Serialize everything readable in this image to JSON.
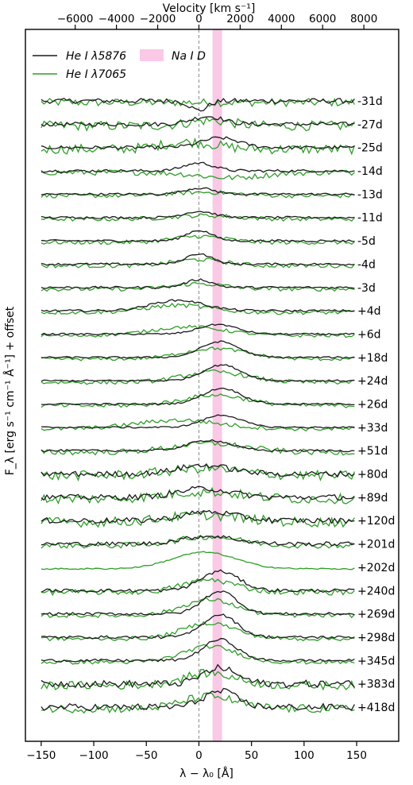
{
  "chart_data": {
    "type": "line",
    "xlabel": "λ − λ₀ [Å]",
    "ylabel": "F_λ [erg s⁻¹ cm⁻¹ Å⁻¹] + offset",
    "top_xlabel": "Velocity [km s⁻¹]",
    "xlim": [
      -165,
      190
    ],
    "x_ticks": [
      -150,
      -100,
      -50,
      0,
      50,
      100,
      150
    ],
    "x_tick_labels": [
      "−150",
      "−100",
      "−50",
      "0",
      "50",
      "100",
      "150"
    ],
    "velocity_ticks": [
      -6000,
      -4000,
      -2000,
      0,
      2000,
      4000,
      6000,
      8000
    ],
    "velocity_tick_labels": [
      "−6000",
      "−4000",
      "−2000",
      "0",
      "2000",
      "4000",
      "6000",
      "8000"
    ],
    "velocity_per_angstrom": 51.0,
    "zero_line_x": 0,
    "na_band": {
      "label": "Na I D",
      "x_range": [
        13,
        22
      ],
      "color": "#f9c9e6"
    },
    "legend": [
      {
        "label": "He I λ5876",
        "color": "#1a1a1a"
      },
      {
        "label": "He I λ7065",
        "color": "#2e9e27"
      }
    ],
    "legend_placement": "top-left",
    "x_samples_range": [
      -150,
      148
    ],
    "series_colors": {
      "he5876": "#1a1a1a",
      "he7065": "#2e9e27"
    },
    "epochs": [
      {
        "label": "-31d",
        "he5876": {
          "peak": 0,
          "amp": -0.55,
          "width": 8,
          "noise": 0.18
        },
        "he7065": {
          "peak": 0,
          "amp": 0,
          "width": 30,
          "noise": 0.28
        }
      },
      {
        "label": "-27d",
        "he5876": {
          "peak": 8,
          "amp": 0.45,
          "width": 15,
          "noise": 0.15
        },
        "he7065": {
          "peak": 10,
          "amp": 0.3,
          "width": 20,
          "noise": 0.35
        }
      },
      {
        "label": "-25d",
        "he5876": {
          "peak": 20,
          "amp": 0.55,
          "width": 18,
          "noise": 0.12
        },
        "he7065": {
          "peak": -10,
          "amp": 0.4,
          "width": 25,
          "noise": 0.35
        }
      },
      {
        "label": "-14d",
        "he5876": {
          "peak": 0,
          "amp": 0.45,
          "width": 14,
          "noise": 0.1
        },
        "he7065": {
          "peak": 30,
          "amp": -0.3,
          "width": 30,
          "noise": 0.2
        }
      },
      {
        "label": "-13d",
        "he5876": {
          "peak": 0,
          "amp": 0.35,
          "width": 14,
          "noise": 0.08
        },
        "he7065": {
          "peak": 5,
          "amp": 0.2,
          "width": 30,
          "noise": 0.15
        }
      },
      {
        "label": "-11d",
        "he5876": {
          "peak": 0,
          "amp": 0.35,
          "width": 14,
          "noise": 0.08
        },
        "he7065": {
          "peak": 5,
          "amp": 0.2,
          "width": 30,
          "noise": 0.15
        }
      },
      {
        "label": "-5d",
        "he5876": {
          "peak": 0,
          "amp": 0.6,
          "width": 12,
          "noise": 0.08
        },
        "he7065": {
          "peak": 0,
          "amp": 0.35,
          "width": 25,
          "noise": 0.15
        }
      },
      {
        "label": "-4d",
        "he5876": {
          "peak": 0,
          "amp": 0.6,
          "width": 12,
          "noise": 0.08
        },
        "he7065": {
          "peak": 0,
          "amp": 0.35,
          "width": 25,
          "noise": 0.15
        }
      },
      {
        "label": "-3d",
        "he5876": {
          "peak": 0,
          "amp": 0.45,
          "width": 12,
          "noise": 0.08
        },
        "he7065": {
          "peak": 0,
          "amp": 0.3,
          "width": 25,
          "noise": 0.15
        }
      },
      {
        "label": "+4d",
        "he5876": {
          "peak": -20,
          "amp": 0.6,
          "width": 25,
          "noise": 0.08
        },
        "he7065": {
          "peak": -20,
          "amp": 0.4,
          "width": 30,
          "noise": 0.15
        }
      },
      {
        "label": "+6d",
        "he5876": {
          "peak": 18,
          "amp": 0.55,
          "width": 18,
          "noise": 0.06
        },
        "he7065": {
          "peak": -10,
          "amp": 0.5,
          "width": 35,
          "noise": 0.12
        }
      },
      {
        "label": "+18d",
        "he5876": {
          "peak": 20,
          "amp": 0.9,
          "width": 18,
          "noise": 0.06
        },
        "he7065": {
          "peak": 15,
          "amp": 0.6,
          "width": 30,
          "noise": 0.12
        }
      },
      {
        "label": "+24d",
        "he5876": {
          "peak": 22,
          "amp": 0.9,
          "width": 18,
          "noise": 0.06
        },
        "he7065": {
          "peak": 15,
          "amp": 0.6,
          "width": 30,
          "noise": 0.15
        }
      },
      {
        "label": "+26d",
        "he5876": {
          "peak": 22,
          "amp": 0.9,
          "width": 18,
          "noise": 0.06
        },
        "he7065": {
          "peak": 15,
          "amp": 0.6,
          "width": 30,
          "noise": 0.15
        }
      },
      {
        "label": "+33d",
        "he5876": {
          "peak": 22,
          "amp": 0.7,
          "width": 18,
          "noise": 0.06
        },
        "he7065": {
          "peak": -20,
          "amp": 0.5,
          "width": 40,
          "noise": 0.15
        }
      },
      {
        "label": "+51d",
        "he5876": {
          "peak": 10,
          "amp": 0.6,
          "width": 20,
          "noise": 0.08
        },
        "he7065": {
          "peak": 10,
          "amp": 0.5,
          "width": 35,
          "noise": 0.2
        }
      },
      {
        "label": "+80d",
        "he5876": {
          "peak": 5,
          "amp": 0.5,
          "width": 25,
          "noise": 0.2
        },
        "he7065": {
          "peak": 5,
          "amp": 0.4,
          "width": 35,
          "noise": 0.35
        }
      },
      {
        "label": "+89d",
        "he5876": {
          "peak": 5,
          "amp": 0.5,
          "width": 25,
          "noise": 0.2
        },
        "he7065": {
          "peak": 5,
          "amp": 0.4,
          "width": 35,
          "noise": 0.35
        }
      },
      {
        "label": "+120d",
        "he5876": {
          "peak": 10,
          "amp": 0.5,
          "width": 25,
          "noise": 0.2
        },
        "he7065": {
          "peak": 5,
          "amp": 0.4,
          "width": 35,
          "noise": 0.35
        }
      },
      {
        "label": "+201d",
        "he5876": {
          "peak": 10,
          "amp": 0.45,
          "width": 25,
          "noise": 0.15
        },
        "he7065": {
          "peak": 10,
          "amp": 0.5,
          "width": 30,
          "noise": 0.2
        }
      },
      {
        "label": "+202d",
        "he5876": null,
        "he7065": {
          "peak": 5,
          "amp": 0.95,
          "width": 30,
          "noise": 0.05
        }
      },
      {
        "label": "+240d",
        "he5876": {
          "peak": 20,
          "amp": 1.1,
          "width": 18,
          "noise": 0.12
        },
        "he7065": {
          "peak": 10,
          "amp": 0.7,
          "width": 25,
          "noise": 0.2
        }
      },
      {
        "label": "+269d",
        "he5876": {
          "peak": 20,
          "amp": 1.3,
          "width": 16,
          "noise": 0.1
        },
        "he7065": {
          "peak": 10,
          "amp": 0.9,
          "width": 25,
          "noise": 0.15
        }
      },
      {
        "label": "+298d",
        "he5876": {
          "peak": 20,
          "amp": 1.3,
          "width": 16,
          "noise": 0.1
        },
        "he7065": {
          "peak": 10,
          "amp": 0.9,
          "width": 25,
          "noise": 0.15
        }
      },
      {
        "label": "+345d",
        "he5876": {
          "peak": 20,
          "amp": 1.2,
          "width": 16,
          "noise": 0.1
        },
        "he7065": {
          "peak": 10,
          "amp": 0.9,
          "width": 25,
          "noise": 0.15
        }
      },
      {
        "label": "+383d",
        "he5876": {
          "peak": 20,
          "amp": 0.9,
          "width": 16,
          "noise": 0.25
        },
        "he7065": {
          "peak": 10,
          "amp": 0.7,
          "width": 25,
          "noise": 0.3
        }
      },
      {
        "label": "+418d",
        "he5876": {
          "peak": 20,
          "amp": 0.9,
          "width": 16,
          "noise": 0.25
        },
        "he7065": {
          "peak": 10,
          "amp": 0.7,
          "width": 25,
          "noise": 0.3
        }
      }
    ]
  }
}
